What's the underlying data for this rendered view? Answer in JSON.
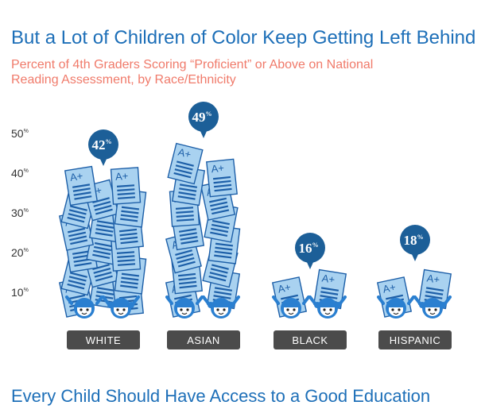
{
  "header": {
    "title": "But a Lot of Children of Color Keep Getting Left Behind",
    "subtitle": "Percent of 4th Graders Scoring “Proficient” or Above on National Reading Assessment, by Race/Ethnicity"
  },
  "footer": {
    "text": "Every Child Should Have Access to a Good Education"
  },
  "chart_data": {
    "type": "bar",
    "title": "But a Lot of Children of Color Keep Getting Left Behind",
    "subtitle": "Percent of 4th Graders Scoring “Proficient” or Above on National Reading Assessment, by Race/Ethnicity",
    "categories": [
      "WHITE",
      "ASIAN",
      "BLACK",
      "HISPANIC"
    ],
    "values": [
      42,
      49,
      16,
      18
    ],
    "value_labels": [
      "42",
      "49",
      "16",
      "18"
    ],
    "value_unit": "%",
    "yticks": [
      "50",
      "40",
      "30",
      "20",
      "10"
    ],
    "ytick_values": [
      50,
      40,
      30,
      20,
      10
    ],
    "ytick_unit": "%",
    "ylim": [
      0,
      50
    ],
    "grid": false,
    "mark_label": "A+",
    "colors": {
      "paper": "#a9d2f0",
      "paper_stroke": "#1d5fa8",
      "bubble": "#1c5f98",
      "category_bar": "#4b4b4b",
      "title": "#1d6fb8",
      "subtitle": "#f07a6a",
      "kid": "#2a7fd0"
    }
  }
}
